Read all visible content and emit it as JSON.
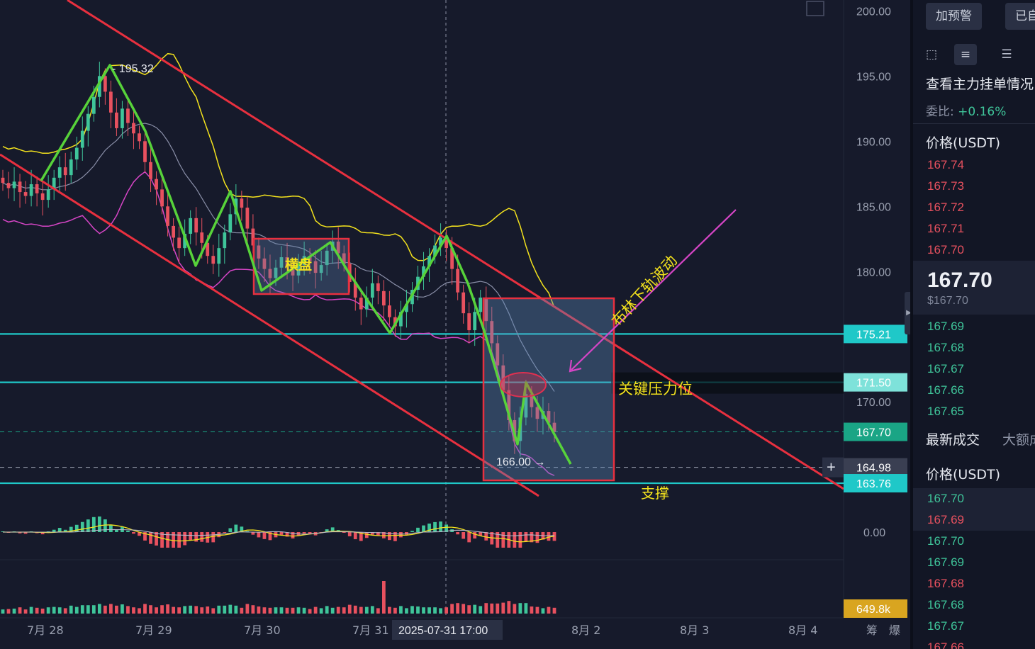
{
  "chart_data": {
    "type": "candlestick",
    "title": "",
    "xlabel": "",
    "ylabel": "",
    "y_axis": {
      "ticks": [
        {
          "value": 200,
          "label": "200.00"
        },
        {
          "value": 195,
          "label": "195.00"
        },
        {
          "value": 190,
          "label": "190.00"
        },
        {
          "value": 185,
          "label": "185.00"
        },
        {
          "value": 180,
          "label": "180.00"
        },
        {
          "value": 170,
          "label": "170.00"
        }
      ],
      "ylim": [
        163.0,
        200.4
      ]
    },
    "x_axis": {
      "labels": [
        "7月 28",
        "7月 29",
        "7月 30",
        "7月 31",
        "8月 2",
        "8月 3",
        "8月 4"
      ],
      "crosshair_label": "2025-07-31 17:00"
    },
    "price_labels": [
      {
        "value": 175.21,
        "label": "175.21",
        "color": "#1fc8c8"
      },
      {
        "value": 171.5,
        "label": "171.50",
        "color": "#7ee2da"
      },
      {
        "value": 167.7,
        "label": "167.70",
        "color": "#1aa585"
      },
      {
        "value": 164.98,
        "label": "164.98",
        "color": "#3a3f52"
      },
      {
        "value": 163.76,
        "label": "163.76",
        "color": "#1fc8c8"
      }
    ],
    "macd_zero_label": "0.00",
    "volume_label": "649.8k",
    "high_marker": {
      "value": 195.32,
      "label": "195.32"
    },
    "low_marker": {
      "value": 166.0,
      "label": "166.00"
    },
    "annotations": {
      "range": "横盘",
      "bollinger": "布林下轨波动",
      "resistance": "关键压力位",
      "support": "支撑"
    },
    "candles_close": [
      186.8,
      186.4,
      186.9,
      186.1,
      185.8,
      186.7,
      186.0,
      185.5,
      186.3,
      187.2,
      188.0,
      187.4,
      188.6,
      189.5,
      190.8,
      192.1,
      193.4,
      195.0,
      193.8,
      192.2,
      191.0,
      192.5,
      191.4,
      190.6,
      190.0,
      188.4,
      187.1,
      186.3,
      185.0,
      183.5,
      182.6,
      181.8,
      182.9,
      184.1,
      183.0,
      182.2,
      181.2,
      180.6,
      181.8,
      183.0,
      184.4,
      185.6,
      184.9,
      183.3,
      182.0,
      181.0,
      180.2,
      179.5,
      180.3,
      181.1,
      180.4,
      179.7,
      180.5,
      181.2,
      180.8,
      179.9,
      180.5,
      181.6,
      182.3,
      181.4,
      180.6,
      179.2,
      178.0,
      177.1,
      178.0,
      179.1,
      178.5,
      177.4,
      176.5,
      175.8,
      176.9,
      177.5,
      178.6,
      179.6,
      180.4,
      181.2,
      182.0,
      182.6,
      181.8,
      180.2,
      178.4,
      176.8,
      175.5,
      176.9,
      178.0,
      176.2,
      174.5,
      172.8,
      170.9,
      168.6,
      167.0,
      168.8,
      170.6,
      169.6,
      168.7,
      169.3,
      168.4,
      167.7
    ]
  },
  "side_panel": {
    "buttons": [
      "加预警",
      "已自"
    ],
    "order_book_title": "查看主力挂单情况",
    "ratio_label": "委比:",
    "ratio_value": "+0.16%",
    "price_header": "价格(USDT)",
    "asks": [
      "167.74",
      "167.73",
      "167.72",
      "167.71",
      "167.70"
    ],
    "last_price": "167.70",
    "last_price_usd": "$167.70",
    "bids": [
      "167.69",
      "167.68",
      "167.67",
      "167.66",
      "167.65"
    ],
    "tabs": [
      "最新成交",
      "大额成"
    ],
    "trades_header": "价格(USDT)",
    "trades": [
      {
        "price": "167.70",
        "side": "buy"
      },
      {
        "price": "167.69",
        "side": "sell"
      },
      {
        "price": "167.70",
        "side": "buy"
      },
      {
        "price": "167.69",
        "side": "buy"
      },
      {
        "price": "167.68",
        "side": "sell"
      },
      {
        "price": "167.68",
        "side": "buy"
      },
      {
        "price": "167.67",
        "side": "buy"
      },
      {
        "price": "167.66",
        "side": "sell"
      }
    ],
    "bottom_labels": [
      "筹",
      "爆"
    ]
  },
  "colors": {
    "up": "#3fc59a",
    "down": "#e8515f",
    "channel": "#e8303f",
    "zigzag": "#57d23a",
    "box_red": "#e8303f",
    "cyan": "#1fc8c8",
    "boll_upper": "#f3e21d",
    "boll_lower": "#d645c6",
    "boll_mid": "#8a8fa8"
  }
}
